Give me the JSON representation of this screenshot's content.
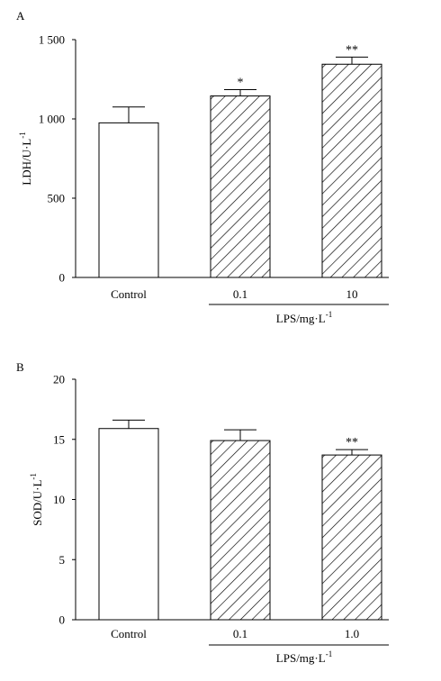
{
  "chart_data": [
    {
      "panel_label": "A",
      "type": "bar",
      "categories": [
        "Control",
        "0.1",
        "10"
      ],
      "values": [
        975,
        1145,
        1345
      ],
      "errors": [
        100,
        40,
        45
      ],
      "significance": [
        "",
        "*",
        "**"
      ],
      "patterns": [
        "none",
        "hatch",
        "hatch"
      ],
      "ylabel": "LDH/U·L",
      "ylabel_sup": "-1",
      "xlabel": "LPS/mg·L",
      "xlabel_sup": "-1",
      "ylim": [
        0,
        1500
      ],
      "yticks": [
        0,
        500,
        1000,
        1500
      ],
      "ytick_labels": [
        "0",
        "500",
        "1 000",
        "1 500"
      ],
      "grouped_categories": [
        "0.1",
        "10"
      ],
      "grid": false
    },
    {
      "panel_label": "B",
      "type": "bar",
      "categories": [
        "Control",
        "0.1",
        "1.0"
      ],
      "values": [
        15.9,
        14.9,
        13.7
      ],
      "errors": [
        0.7,
        0.9,
        0.45
      ],
      "significance": [
        "",
        "",
        "**"
      ],
      "patterns": [
        "none",
        "hatch",
        "hatch"
      ],
      "ylabel": "SOD/U·L",
      "ylabel_sup": "-1",
      "xlabel": "LPS/mg·L",
      "xlabel_sup": "-1",
      "ylim": [
        0,
        20
      ],
      "yticks": [
        0,
        5,
        10,
        15,
        20
      ],
      "ytick_labels": [
        "0",
        "5",
        "10",
        "15",
        "20"
      ],
      "grouped_categories": [
        "0.1",
        "1.0"
      ],
      "grid": false
    }
  ]
}
